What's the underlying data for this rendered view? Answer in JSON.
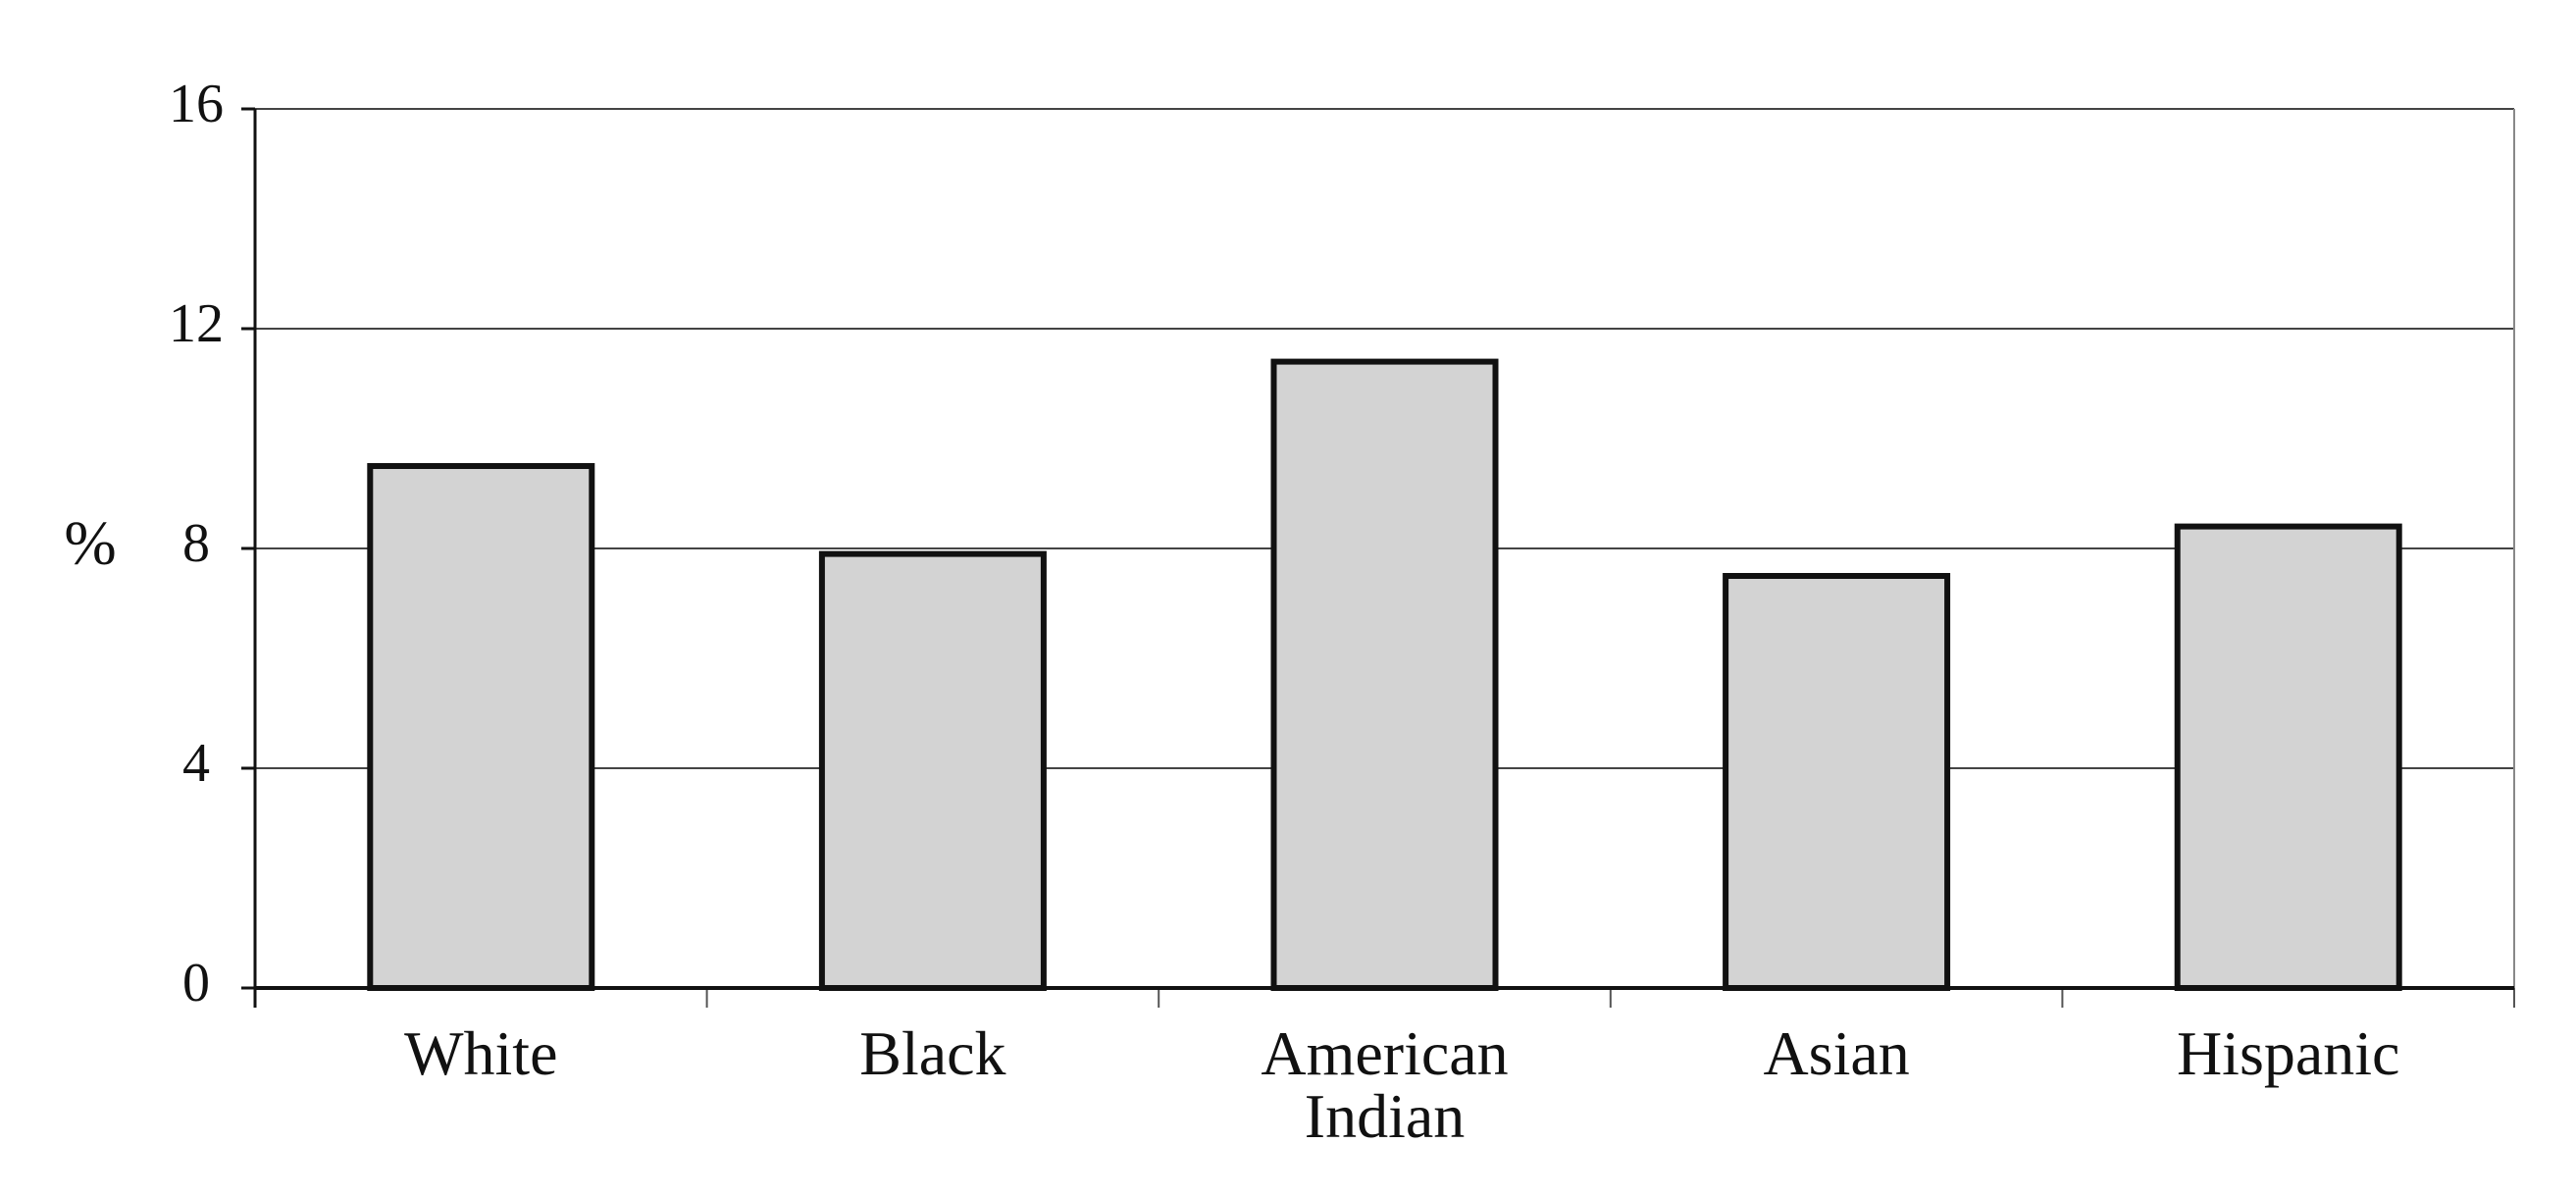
{
  "chart_data": {
    "type": "bar",
    "y_label": "%",
    "categories": [
      "White",
      "Black",
      "American Indian",
      "Asian",
      "Hispanic"
    ],
    "values": [
      9.5,
      7.9,
      11.4,
      7.5,
      8.4
    ],
    "color": "#d3d3d3",
    "ylim": [
      0,
      16
    ],
    "yticks": [
      0,
      4,
      8,
      12,
      16
    ],
    "grid": true
  }
}
